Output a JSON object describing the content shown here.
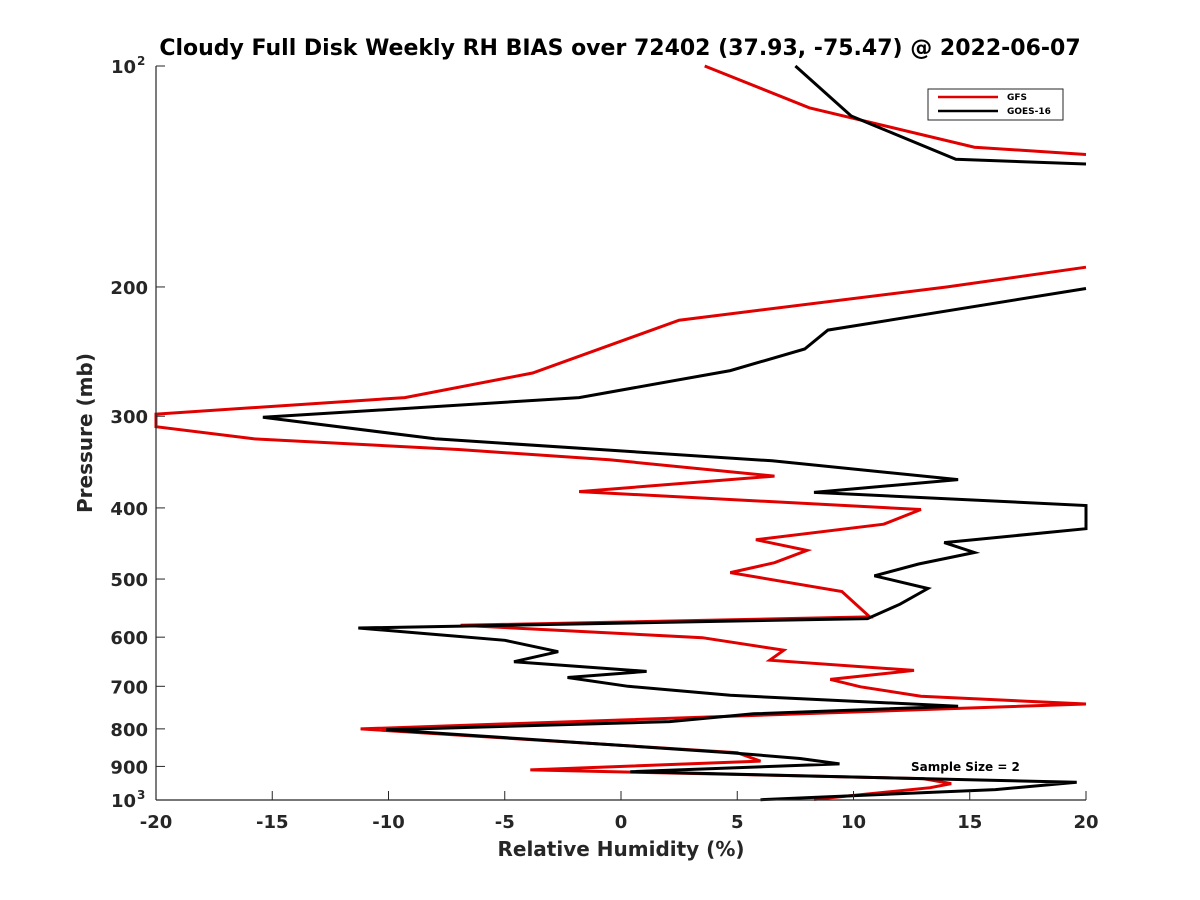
{
  "chart_data": {
    "type": "line",
    "title": "Cloudy Full Disk Weekly RH BIAS over 72402 (37.93, -75.47) @ 2022-06-07",
    "xlabel": "Relative Humidity (%)",
    "ylabel": "Pressure (mb)",
    "xlim": [
      -20,
      20
    ],
    "ylim": [
      100,
      1000
    ],
    "y_scale": "log",
    "y_reversed": true,
    "x_ticks": [
      "-20",
      "-15",
      "-10",
      "-5",
      "0",
      "5",
      "10",
      "15",
      "20"
    ],
    "y_ticks": [
      {
        "value": 100,
        "base": "10",
        "exp": "2"
      },
      {
        "value": 200,
        "label": "200"
      },
      {
        "value": 300,
        "label": "300"
      },
      {
        "value": 400,
        "label": "400"
      },
      {
        "value": 500,
        "label": "500"
      },
      {
        "value": 600,
        "label": "600"
      },
      {
        "value": 700,
        "label": "700"
      },
      {
        "value": 800,
        "label": "800"
      },
      {
        "value": 900,
        "label": "900"
      },
      {
        "value": 1000,
        "base": "10",
        "exp": "3"
      }
    ],
    "legend_position": "top-right",
    "annotation": "Sample Size = 2",
    "grid": false,
    "series": [
      {
        "name": "GFS",
        "color": "#e00000",
        "points": [
          [
            3.6,
            100
          ],
          [
            8.1,
            114
          ],
          [
            15.2,
            129
          ],
          [
            20.0,
            132
          ],
          [
            null,
            150
          ],
          [
            20.0,
            188
          ],
          [
            14.0,
            200
          ],
          [
            2.5,
            222
          ],
          [
            -3.8,
            262
          ],
          [
            -9.3,
            283
          ],
          [
            -20.0,
            298
          ],
          [
            -20.0,
            310
          ],
          [
            -15.8,
            322
          ],
          [
            -7.0,
            333
          ],
          [
            -0.5,
            344
          ],
          [
            6.6,
            362
          ],
          [
            -1.8,
            380
          ],
          [
            12.9,
            402
          ],
          [
            11.3,
            421
          ],
          [
            5.8,
            442
          ],
          [
            8.0,
            457
          ],
          [
            6.6,
            475
          ],
          [
            4.7,
            490
          ],
          [
            9.5,
            520
          ],
          [
            10.7,
            563
          ],
          [
            -6.9,
            578
          ],
          [
            3.5,
            601
          ],
          [
            7.0,
            625
          ],
          [
            6.4,
            645
          ],
          [
            12.6,
            666
          ],
          [
            9.0,
            685
          ],
          [
            10.3,
            701
          ],
          [
            12.9,
            722
          ],
          [
            20.0,
            740
          ],
          [
            -11.2,
            800
          ],
          [
            5.0,
            862
          ],
          [
            6.0,
            885
          ],
          [
            -3.9,
            910
          ],
          [
            13.0,
            935
          ],
          [
            14.2,
            950
          ],
          [
            13.3,
            962
          ],
          [
            8.3,
            998
          ]
        ]
      },
      {
        "name": "GOES-16",
        "color": "#000000",
        "points": [
          [
            7.5,
            100
          ],
          [
            9.9,
            117
          ],
          [
            14.4,
            134
          ],
          [
            20.0,
            136
          ],
          [
            null,
            150
          ],
          [
            20.0,
            201
          ],
          [
            8.9,
            229
          ],
          [
            7.9,
            243
          ],
          [
            4.7,
            260
          ],
          [
            -1.8,
            283
          ],
          [
            -15.4,
            301
          ],
          [
            -8.0,
            322
          ],
          [
            6.5,
            345
          ],
          [
            14.5,
            366
          ],
          [
            8.3,
            381
          ],
          [
            20.0,
            397
          ],
          [
            20.0,
            427
          ],
          [
            13.9,
            446
          ],
          [
            15.2,
            460
          ],
          [
            12.8,
            477
          ],
          [
            10.9,
            495
          ],
          [
            13.2,
            515
          ],
          [
            12.0,
            541
          ],
          [
            10.6,
            566
          ],
          [
            -11.3,
            583
          ],
          [
            -5.0,
            606
          ],
          [
            -2.7,
            628
          ],
          [
            -4.6,
            648
          ],
          [
            1.1,
            668
          ],
          [
            -2.3,
            681
          ],
          [
            0.3,
            700
          ],
          [
            4.7,
            720
          ],
          [
            14.5,
            745
          ],
          [
            5.7,
            763
          ],
          [
            2.1,
            782
          ],
          [
            -10.1,
            802
          ],
          [
            4.7,
            862
          ],
          [
            7.7,
            878
          ],
          [
            9.4,
            893
          ],
          [
            0.4,
            915
          ],
          [
            19.6,
            946
          ],
          [
            16.1,
            968
          ],
          [
            6.0,
            999
          ]
        ]
      }
    ]
  },
  "legend": {
    "items": [
      {
        "label": "GFS",
        "color": "#e00000"
      },
      {
        "label": "GOES-16",
        "color": "#000000"
      }
    ]
  }
}
